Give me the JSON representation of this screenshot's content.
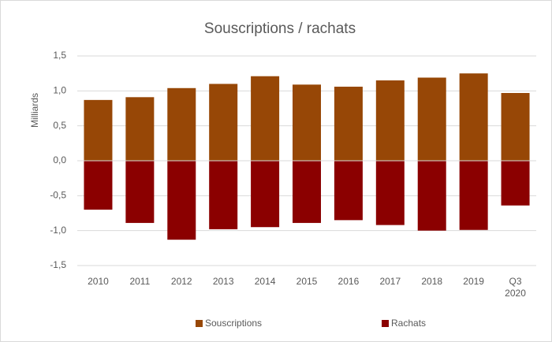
{
  "chart_data": {
    "type": "bar",
    "title": "Souscriptions / rachats",
    "y_label": "Milliards",
    "categories": [
      "2010",
      "2011",
      "2012",
      "2013",
      "2014",
      "2015",
      "2016",
      "2017",
      "2018",
      "2019",
      "Q3 2020"
    ],
    "series": [
      {
        "name": "Souscriptions",
        "color": "#974706",
        "values": [
          0.87,
          0.91,
          1.04,
          1.1,
          1.21,
          1.09,
          1.06,
          1.15,
          1.19,
          1.25,
          0.97
        ]
      },
      {
        "name": "Rachats",
        "color": "#8b0000",
        "values": [
          -0.7,
          -0.89,
          -1.13,
          -0.98,
          -0.95,
          -0.89,
          -0.85,
          -0.92,
          -1.0,
          -0.99,
          -0.64
        ]
      }
    ],
    "ylim": [
      -1.5,
      1.5
    ],
    "yticks": [
      {
        "value": -1.5,
        "label": "-1,5"
      },
      {
        "value": -1,
        "label": "-1,0"
      },
      {
        "value": -0.5,
        "label": "-0,5"
      },
      {
        "value": 0,
        "label": "0,0"
      },
      {
        "value": 0.5,
        "label": "0,5"
      },
      {
        "value": 1,
        "label": "1,0"
      },
      {
        "value": 1.5,
        "label": "1,5"
      }
    ],
    "grid": true,
    "legend": "bottom"
  }
}
